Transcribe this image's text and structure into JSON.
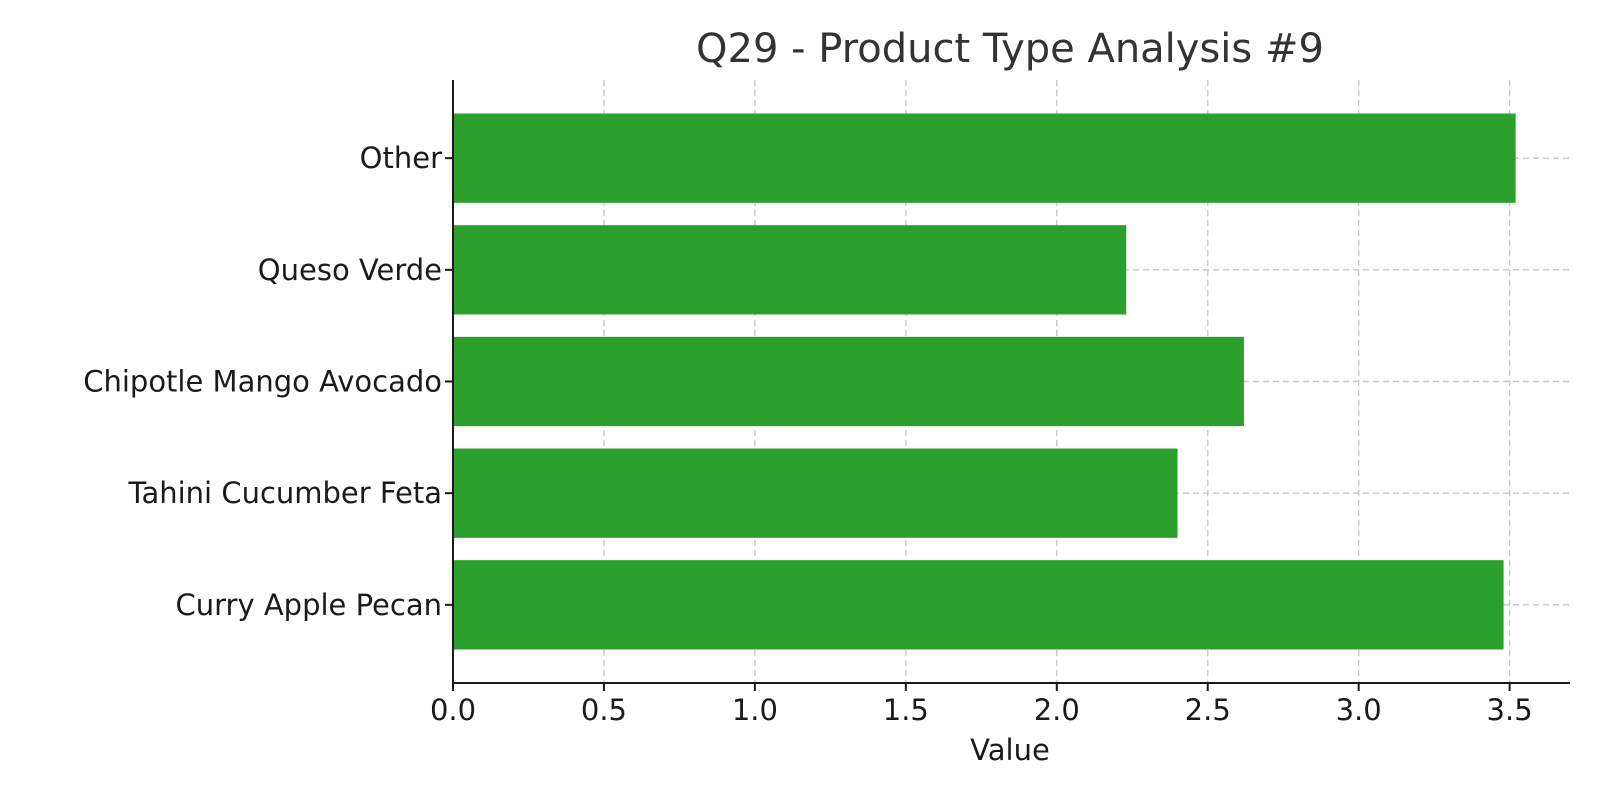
{
  "chart_data": {
    "type": "bar",
    "orientation": "horizontal",
    "title": "Q29 - Product Type Analysis #9",
    "xlabel": "Value",
    "ylabel": "",
    "categories": [
      "Curry Apple Pecan",
      "Tahini Cucumber Feta",
      "Chipotle Mango Avocado",
      "Queso Verde",
      "Other"
    ],
    "values": [
      3.48,
      2.4,
      2.62,
      2.23,
      3.52
    ],
    "xlim": [
      0,
      3.7
    ],
    "xticks": [
      "0.0",
      "0.5",
      "1.0",
      "1.5",
      "2.0",
      "2.5",
      "3.0",
      "3.5"
    ],
    "grid": true,
    "bar_color": "#2ca02c"
  }
}
